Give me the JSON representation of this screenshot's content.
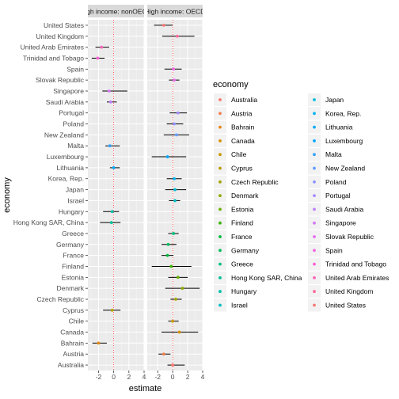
{
  "chart_data": {
    "type": "scatter",
    "style": "point-range with horizontal confidence intervals, faceted",
    "xlabel": "estimate",
    "ylabel": "economy",
    "xlim": [
      -3.4,
      4
    ],
    "x_ticks": [
      -2,
      0,
      2,
      4
    ],
    "grid": true,
    "reference_line": {
      "x": 0,
      "color": "#ff3333",
      "style": "dotted"
    },
    "economies": [
      "United States",
      "United Kingdom",
      "United Arab Emirates",
      "Trinidad and Tobago",
      "Spain",
      "Slovak Republic",
      "Singapore",
      "Saudi Arabia",
      "Portugal",
      "Poland",
      "New Zealand",
      "Malta",
      "Luxembourg",
      "Lithuania",
      "Korea, Rep.",
      "Japan",
      "Israel",
      "Hungary",
      "Hong Kong SAR, China",
      "Greece",
      "Germany",
      "France",
      "Finland",
      "Estonia",
      "Denmark",
      "Czech Republic",
      "Cyprus",
      "Chile",
      "Canada",
      "Bahrain",
      "Austria",
      "Australia"
    ],
    "facets": [
      {
        "label": "High income: nonOECD",
        "points": [
          {
            "economy": "United Arab Emirates",
            "estimate": -1.6,
            "lo": -2.4,
            "hi": -0.6
          },
          {
            "economy": "Trinidad and Tobago",
            "estimate": -2.1,
            "lo": -2.9,
            "hi": -1.2
          },
          {
            "economy": "Singapore",
            "estimate": -0.6,
            "lo": -1.5,
            "hi": 1.8
          },
          {
            "economy": "Saudi Arabia",
            "estimate": -0.4,
            "lo": -0.9,
            "hi": 0.4
          },
          {
            "economy": "Malta",
            "estimate": -0.5,
            "lo": -1.1,
            "hi": 0.8
          },
          {
            "economy": "Lithuania",
            "estimate": 0.0,
            "lo": -0.5,
            "hi": 0.8
          },
          {
            "economy": "Hong Kong SAR, China",
            "estimate": -0.3,
            "lo": -1.8,
            "hi": 0.9
          },
          {
            "economy": "Cyprus",
            "estimate": -0.2,
            "lo": -1.4,
            "hi": 0.9
          },
          {
            "economy": "Bahrain",
            "estimate": -2.0,
            "lo": -2.8,
            "hi": -0.9
          },
          {
            "economy": "Hungary",
            "estimate": -0.2,
            "lo": -1.4,
            "hi": 0.7
          }
        ]
      },
      {
        "label": "High income: OECD",
        "points": [
          {
            "economy": "United States",
            "estimate": -1.2,
            "lo": -2.5,
            "hi": 0.0
          },
          {
            "economy": "United Kingdom",
            "estimate": 0.6,
            "lo": -1.4,
            "hi": 2.9
          },
          {
            "economy": "Spain",
            "estimate": 0.1,
            "lo": -1.1,
            "hi": 1.2
          },
          {
            "economy": "Slovak Republic",
            "estimate": 0.2,
            "lo": -0.5,
            "hi": 0.9
          },
          {
            "economy": "Portugal",
            "estimate": 0.7,
            "lo": -0.4,
            "hi": 1.9
          },
          {
            "economy": "Poland",
            "estimate": 0.2,
            "lo": -0.8,
            "hi": 1.4
          },
          {
            "economy": "New Zealand",
            "estimate": 0.5,
            "lo": -1.2,
            "hi": 2.2
          },
          {
            "economy": "Luxembourg",
            "estimate": -0.7,
            "lo": -2.8,
            "hi": 1.8
          },
          {
            "economy": "Korea, Rep.",
            "estimate": 0.2,
            "lo": -0.8,
            "hi": 1.2
          },
          {
            "economy": "Japan",
            "estimate": 0.3,
            "lo": -1.0,
            "hi": 1.8
          },
          {
            "economy": "Israel",
            "estimate": 0.3,
            "lo": -0.5,
            "hi": 1.0
          },
          {
            "economy": "Greece",
            "estimate": 0.1,
            "lo": -0.6,
            "hi": 0.8
          },
          {
            "economy": "Germany",
            "estimate": -0.6,
            "lo": -1.5,
            "hi": 0.5
          },
          {
            "economy": "France",
            "estimate": -0.7,
            "lo": -1.5,
            "hi": 0.1
          },
          {
            "economy": "Finland",
            "estimate": -0.2,
            "lo": -2.8,
            "hi": 2.5
          },
          {
            "economy": "Estonia",
            "estimate": 0.7,
            "lo": -0.6,
            "hi": 2.0
          },
          {
            "economy": "Denmark",
            "estimate": 1.3,
            "lo": -1.0,
            "hi": 3.6
          },
          {
            "economy": "Czech Republic",
            "estimate": 0.4,
            "lo": -0.3,
            "hi": 1.2
          },
          {
            "economy": "Chile",
            "estimate": 0.0,
            "lo": -0.6,
            "hi": 0.8
          },
          {
            "economy": "Canada",
            "estimate": 0.9,
            "lo": -1.5,
            "hi": 3.4
          },
          {
            "economy": "Austria",
            "estimate": -1.2,
            "lo": -1.9,
            "hi": -0.3
          },
          {
            "economy": "Australia",
            "estimate": 0.0,
            "lo": -0.7,
            "hi": 1.6
          }
        ]
      }
    ],
    "legend": {
      "title": "economy",
      "placement": "right",
      "columns": [
        [
          {
            "label": "Australia",
            "color": "#f8766d"
          },
          {
            "label": "Austria",
            "color": "#f07e4b"
          },
          {
            "label": "Bahrain",
            "color": "#e68613"
          },
          {
            "label": "Canada",
            "color": "#d89000"
          },
          {
            "label": "Chile",
            "color": "#c99800"
          },
          {
            "label": "Cyprus",
            "color": "#b79f00"
          },
          {
            "label": "Czech Republic",
            "color": "#a3a500"
          },
          {
            "label": "Denmark",
            "color": "#8bab00"
          },
          {
            "label": "Estonia",
            "color": "#6bb100"
          },
          {
            "label": "Finland",
            "color": "#39b600"
          },
          {
            "label": "France",
            "color": "#00ba38"
          },
          {
            "label": "Germany",
            "color": "#00bd5c"
          },
          {
            "label": "Greece",
            "color": "#00c07b"
          },
          {
            "label": "Hong Kong SAR, China",
            "color": "#00c097"
          },
          {
            "label": "Hungary",
            "color": "#00c1aa"
          },
          {
            "label": "Israel",
            "color": "#00bfc4"
          }
        ],
        [
          {
            "label": "Japan",
            "color": "#00bcd8"
          },
          {
            "label": "Korea, Rep.",
            "color": "#00b4f0"
          },
          {
            "label": "Lithuania",
            "color": "#00abfd"
          },
          {
            "label": "Luxembourg",
            "color": "#00a5ff"
          },
          {
            "label": "Malta",
            "color": "#35a2ff"
          },
          {
            "label": "New Zealand",
            "color": "#619cff"
          },
          {
            "label": "Poland",
            "color": "#8b93ff"
          },
          {
            "label": "Portugal",
            "color": "#a58aff"
          },
          {
            "label": "Saudi Arabia",
            "color": "#bf80ff"
          },
          {
            "label": "Singapore",
            "color": "#d478f5"
          },
          {
            "label": "Slovak Republic",
            "color": "#e76bf3"
          },
          {
            "label": "Spain",
            "color": "#f564e3"
          },
          {
            "label": "Trinidad and Tobago",
            "color": "#fc61d5"
          },
          {
            "label": "United Arab Emirates",
            "color": "#ff63b6"
          },
          {
            "label": "United Kingdom",
            "color": "#ff6a98"
          },
          {
            "label": "United States",
            "color": "#fa7876"
          }
        ]
      ]
    }
  }
}
